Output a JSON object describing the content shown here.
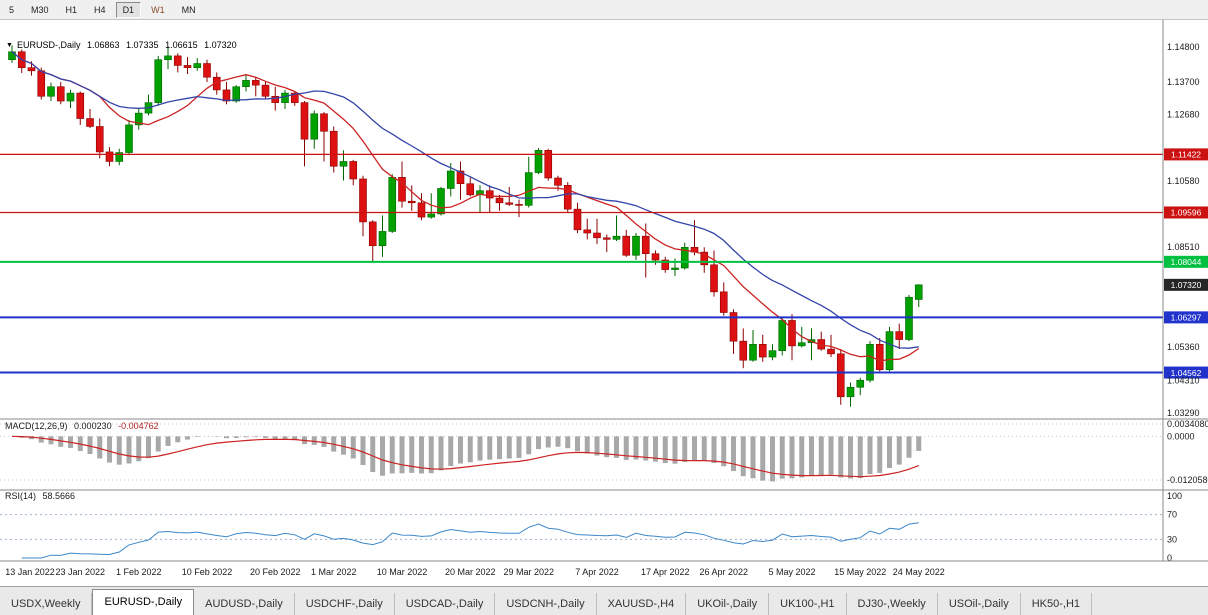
{
  "toolbar": {
    "timeframes": [
      {
        "label": "5",
        "active": false
      },
      {
        "label": "M30",
        "active": false
      },
      {
        "label": "H1",
        "active": false
      },
      {
        "label": "H4",
        "active": false
      },
      {
        "label": "D1",
        "active": true
      },
      {
        "label": "W1",
        "active": false,
        "color": "#8b4a2d"
      },
      {
        "label": "MN",
        "active": false
      }
    ]
  },
  "tabs": [
    {
      "label": "USDX,Weekly",
      "active": false
    },
    {
      "label": "EURUSD-,Daily",
      "active": true
    },
    {
      "label": "AUDUSD-,Daily",
      "active": false
    },
    {
      "label": "USDCHF-,Daily",
      "active": false
    },
    {
      "label": "USDCAD-,Daily",
      "active": false
    },
    {
      "label": "USDCNH-,Daily",
      "active": false
    },
    {
      "label": "XAUUSD-,H4",
      "active": false
    },
    {
      "label": "UKOil-,Daily",
      "active": false
    },
    {
      "label": "UK100-,H1",
      "active": false
    },
    {
      "label": "DJ30-,Weekly",
      "active": false
    },
    {
      "label": "USOil-,Daily",
      "active": false
    },
    {
      "label": "HK50-,H1",
      "active": false
    }
  ],
  "chart_data": {
    "type": "candlestick",
    "symbol": "EURUSD-",
    "timeframe": "Daily",
    "header": {
      "symbol": "EURUSD-,Daily",
      "open": "1.06863",
      "high": "1.07335",
      "low": "1.06615",
      "close": "1.07320"
    },
    "price_range": [
      1.03,
      1.15
    ],
    "colors": {
      "up": "#00a000",
      "up_edge": "#006600",
      "down": "#dd1111",
      "down_edge": "#8b0000",
      "ma_fast": "#cc2222",
      "ma_slow": "#3344aa",
      "macd_bar": "#a8a8a8",
      "macd_signal": "#cc2222",
      "rsi_line": "#3b87c8"
    },
    "y_axis_ticks": [
      {
        "label": "1.14800",
        "price": 1.148
      },
      {
        "label": "1.13700",
        "price": 1.137
      },
      {
        "label": "1.12680",
        "price": 1.1268
      },
      {
        "label": "1.10580",
        "price": 1.1058
      },
      {
        "label": "1.08510",
        "price": 1.0851
      },
      {
        "label": "1.05360",
        "price": 1.0536
      },
      {
        "label": "1.04310",
        "price": 1.0431
      },
      {
        "label": "1.03290",
        "price": 1.0329
      }
    ],
    "price_levels": [
      {
        "label": "1.11422",
        "price": 1.11422,
        "color": "#cc1111",
        "width": 1.3,
        "line": true
      },
      {
        "label": "1.09596",
        "price": 1.09596,
        "color": "#cc1111",
        "width": 1.3,
        "line": true
      },
      {
        "label": "1.08044",
        "price": 1.08044,
        "color": "#00c040",
        "width": 2,
        "line": true
      },
      {
        "label": "1.07320",
        "price": 1.0732,
        "color": "#262626",
        "width": 1,
        "line": false,
        "current": true
      },
      {
        "label": "1.06297",
        "price": 1.06297,
        "color": "#2233cc",
        "width": 2,
        "line": true
      },
      {
        "label": "1.04562",
        "price": 1.04562,
        "color": "#2233cc",
        "width": 2,
        "line": true
      }
    ],
    "x_axis_ticks": [
      {
        "label": "13 Jan 2022",
        "index": 0
      },
      {
        "label": "23 Jan 2022",
        "index": 7
      },
      {
        "label": "1 Feb 2022",
        "index": 13
      },
      {
        "label": "10 Feb 2022",
        "index": 20
      },
      {
        "label": "20 Feb 2022",
        "index": 27
      },
      {
        "label": "1 Mar 2022",
        "index": 33
      },
      {
        "label": "10 Mar 2022",
        "index": 40
      },
      {
        "label": "20 Mar 2022",
        "index": 47
      },
      {
        "label": "29 Mar 2022",
        "index": 53
      },
      {
        "label": "7 Apr 2022",
        "index": 60
      },
      {
        "label": "17 Apr 2022",
        "index": 67
      },
      {
        "label": "26 Apr 2022",
        "index": 73
      },
      {
        "label": "5 May 2022",
        "index": 80
      },
      {
        "label": "15 May 2022",
        "index": 87
      },
      {
        "label": "24 May 2022",
        "index": 93
      }
    ],
    "moving_averages": [
      {
        "name": "ma-fast",
        "period": 10,
        "color": "#cc2222"
      },
      {
        "name": "ma-slow",
        "period": 20,
        "color": "#3344aa"
      }
    ],
    "macd": {
      "name": "MACD(12,26,9)",
      "fast": 12,
      "slow": 26,
      "signal": 9,
      "main_value": "0.000230",
      "signal_value": "-0.004762",
      "axis_labels": [
        {
          "label": "0.0034080",
          "value": 0.003408
        },
        {
          "label": "0.0000",
          "value": 0
        },
        {
          "label": "-0.0120580",
          "value": -0.012058
        }
      ]
    },
    "rsi": {
      "name": "RSI(14)",
      "period": 14,
      "value": "58.5666",
      "levels": [
        70,
        30
      ],
      "axis_labels": [
        {
          "label": "100",
          "value": 100
        },
        {
          "label": "70",
          "value": 70
        },
        {
          "label": "30",
          "value": 30
        },
        {
          "label": "0",
          "value": 0
        }
      ]
    },
    "candles": [
      [
        1.144,
        1.1485,
        1.143,
        1.1465
      ],
      [
        1.1465,
        1.1472,
        1.1398,
        1.1415
      ],
      [
        1.1415,
        1.1435,
        1.139,
        1.1405
      ],
      [
        1.1405,
        1.1415,
        1.1315,
        1.1325
      ],
      [
        1.1325,
        1.1368,
        1.131,
        1.1355
      ],
      [
        1.1355,
        1.137,
        1.13,
        1.131
      ],
      [
        1.131,
        1.1345,
        1.1288,
        1.1335
      ],
      [
        1.1335,
        1.134,
        1.1235,
        1.1255
      ],
      [
        1.1255,
        1.1285,
        1.1225,
        1.123
      ],
      [
        1.123,
        1.1255,
        1.113,
        1.115
      ],
      [
        1.115,
        1.1165,
        1.1105,
        1.112
      ],
      [
        1.112,
        1.116,
        1.1108,
        1.1148
      ],
      [
        1.1148,
        1.125,
        1.114,
        1.1235
      ],
      [
        1.1235,
        1.1285,
        1.122,
        1.1272
      ],
      [
        1.1272,
        1.133,
        1.1265,
        1.1305
      ],
      [
        1.1305,
        1.1452,
        1.1295,
        1.144
      ],
      [
        1.144,
        1.1483,
        1.141,
        1.1452
      ],
      [
        1.1452,
        1.146,
        1.14,
        1.1422
      ],
      [
        1.1422,
        1.1448,
        1.1395,
        1.1415
      ],
      [
        1.1415,
        1.1445,
        1.1405,
        1.1428
      ],
      [
        1.1428,
        1.144,
        1.137,
        1.1385
      ],
      [
        1.1385,
        1.14,
        1.133,
        1.1345
      ],
      [
        1.1345,
        1.137,
        1.13,
        1.131
      ],
      [
        1.131,
        1.136,
        1.1305,
        1.1355
      ],
      [
        1.1355,
        1.1395,
        1.134,
        1.1375
      ],
      [
        1.1375,
        1.1385,
        1.1325,
        1.136
      ],
      [
        1.136,
        1.137,
        1.1315,
        1.1325
      ],
      [
        1.1325,
        1.1355,
        1.128,
        1.1305
      ],
      [
        1.1305,
        1.1345,
        1.1285,
        1.1335
      ],
      [
        1.1335,
        1.134,
        1.1295,
        1.1305
      ],
      [
        1.1305,
        1.131,
        1.1105,
        1.119
      ],
      [
        1.119,
        1.128,
        1.116,
        1.127
      ],
      [
        1.127,
        1.1275,
        1.112,
        1.1215
      ],
      [
        1.1215,
        1.123,
        1.1085,
        1.1105
      ],
      [
        1.1105,
        1.1155,
        1.106,
        1.112
      ],
      [
        1.112,
        1.1125,
        1.1045,
        1.1065
      ],
      [
        1.1065,
        1.1075,
        1.0885,
        1.093
      ],
      [
        1.093,
        1.0935,
        1.0805,
        1.0855
      ],
      [
        1.0855,
        1.095,
        1.082,
        1.09
      ],
      [
        1.09,
        1.108,
        1.0895,
        1.107
      ],
      [
        1.107,
        1.112,
        1.0975,
        1.0995
      ],
      [
        1.0995,
        1.1045,
        1.0965,
        1.099
      ],
      [
        1.099,
        1.102,
        1.0935,
        1.0945
      ],
      [
        1.0945,
        1.102,
        1.094,
        1.0955
      ],
      [
        1.0955,
        1.104,
        1.095,
        1.1035
      ],
      [
        1.1035,
        1.1115,
        1.101,
        1.109
      ],
      [
        1.109,
        1.112,
        1.1,
        1.105
      ],
      [
        1.105,
        1.107,
        1.101,
        1.1015
      ],
      [
        1.1015,
        1.1045,
        1.096,
        1.1028
      ],
      [
        1.1028,
        1.1045,
        1.096,
        1.1005
      ],
      [
        1.1005,
        1.1015,
        1.0965,
        1.099
      ],
      [
        1.099,
        1.104,
        1.098,
        1.0985
      ],
      [
        1.0985,
        1.1,
        1.0945,
        1.0982
      ],
      [
        1.0982,
        1.1135,
        1.0975,
        1.1085
      ],
      [
        1.1085,
        1.1162,
        1.108,
        1.1155
      ],
      [
        1.1155,
        1.116,
        1.106,
        1.1068
      ],
      [
        1.1068,
        1.1075,
        1.1028,
        1.1045
      ],
      [
        1.1045,
        1.1055,
        1.096,
        1.097
      ],
      [
        1.097,
        1.099,
        1.0895,
        1.0905
      ],
      [
        1.0905,
        1.094,
        1.0875,
        1.0895
      ],
      [
        1.0895,
        1.094,
        1.086,
        1.088
      ],
      [
        1.088,
        1.089,
        1.0835,
        1.0875
      ],
      [
        1.0875,
        1.095,
        1.087,
        1.0885
      ],
      [
        1.0885,
        1.0905,
        1.082,
        1.0825
      ],
      [
        1.0825,
        1.0895,
        1.081,
        1.0885
      ],
      [
        1.0885,
        1.0925,
        1.0755,
        1.083
      ],
      [
        1.083,
        1.084,
        1.0795,
        1.081
      ],
      [
        1.081,
        1.082,
        1.077,
        1.078
      ],
      [
        1.078,
        1.0815,
        1.076,
        1.0785
      ],
      [
        1.0785,
        1.0865,
        1.078,
        1.085
      ],
      [
        1.085,
        1.0935,
        1.0825,
        1.0835
      ],
      [
        1.0835,
        1.085,
        1.077,
        1.0795
      ],
      [
        1.0795,
        1.084,
        1.0695,
        1.071
      ],
      [
        1.071,
        1.074,
        1.0635,
        1.0645
      ],
      [
        1.0645,
        1.0655,
        1.0515,
        1.0555
      ],
      [
        1.0555,
        1.0595,
        1.047,
        1.0495
      ],
      [
        1.0495,
        1.059,
        1.049,
        1.0545
      ],
      [
        1.0545,
        1.0575,
        1.049,
        1.0505
      ],
      [
        1.0505,
        1.0545,
        1.0495,
        1.0525
      ],
      [
        1.0525,
        1.063,
        1.051,
        1.062
      ],
      [
        1.062,
        1.064,
        1.0495,
        1.054
      ],
      [
        1.054,
        1.06,
        1.0535,
        1.055
      ],
      [
        1.055,
        1.0595,
        1.0495,
        1.056
      ],
      [
        1.056,
        1.0585,
        1.0525,
        1.053
      ],
      [
        1.053,
        1.0575,
        1.0505,
        1.0515
      ],
      [
        1.0515,
        1.053,
        1.0355,
        1.038
      ],
      [
        1.038,
        1.0425,
        1.0349,
        1.041
      ],
      [
        1.041,
        1.044,
        1.0385,
        1.0432
      ],
      [
        1.0432,
        1.0555,
        1.0425,
        1.0545
      ],
      [
        1.0545,
        1.0565,
        1.0455,
        1.0465
      ],
      [
        1.0465,
        1.06,
        1.046,
        1.0585
      ],
      [
        1.0585,
        1.061,
        1.053,
        1.056
      ],
      [
        1.056,
        1.07,
        1.0555,
        1.0693
      ],
      [
        1.0686,
        1.0734,
        1.0662,
        1.0732
      ]
    ]
  }
}
